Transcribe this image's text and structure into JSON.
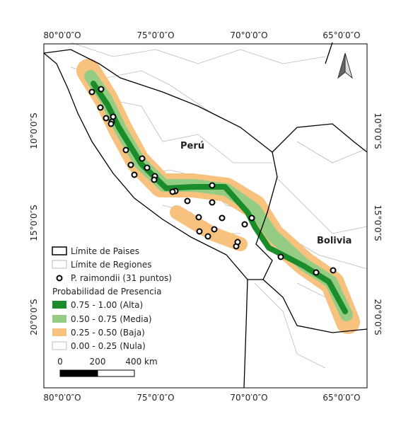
{
  "map": {
    "top_labels": [
      "80°0′0″O",
      "75°0′0″O",
      "70°0′0″O",
      "65°0′0″O"
    ],
    "bottom_labels": [
      "80°0′0″O",
      "75°0′0″O",
      "70°0′0″O",
      "65°0′0″O"
    ],
    "left_labels": [
      "10°0′0″S",
      "15°0′0″S",
      "20°0′0″S"
    ],
    "right_labels": [
      "10°0′0″S",
      "15°0′0″S",
      "20°0′0″S"
    ],
    "countries": [
      "Perú",
      "Bolivia"
    ]
  },
  "legend": {
    "country_border": "Límite de Paises",
    "region_border": "Límite de Regiones",
    "points": "P. raimondii (31 puntos)",
    "title": "Probabilidad de Presencia",
    "classes": [
      "0.75 - 1.00 (Alta)",
      "0.50 - 0.75 (Media)",
      "0.25 - 0.50 (Baja)",
      "0.00 - 0.25 (Nula)"
    ]
  },
  "scale_bar": {
    "labels": [
      "0",
      "200",
      "400 km"
    ]
  }
}
